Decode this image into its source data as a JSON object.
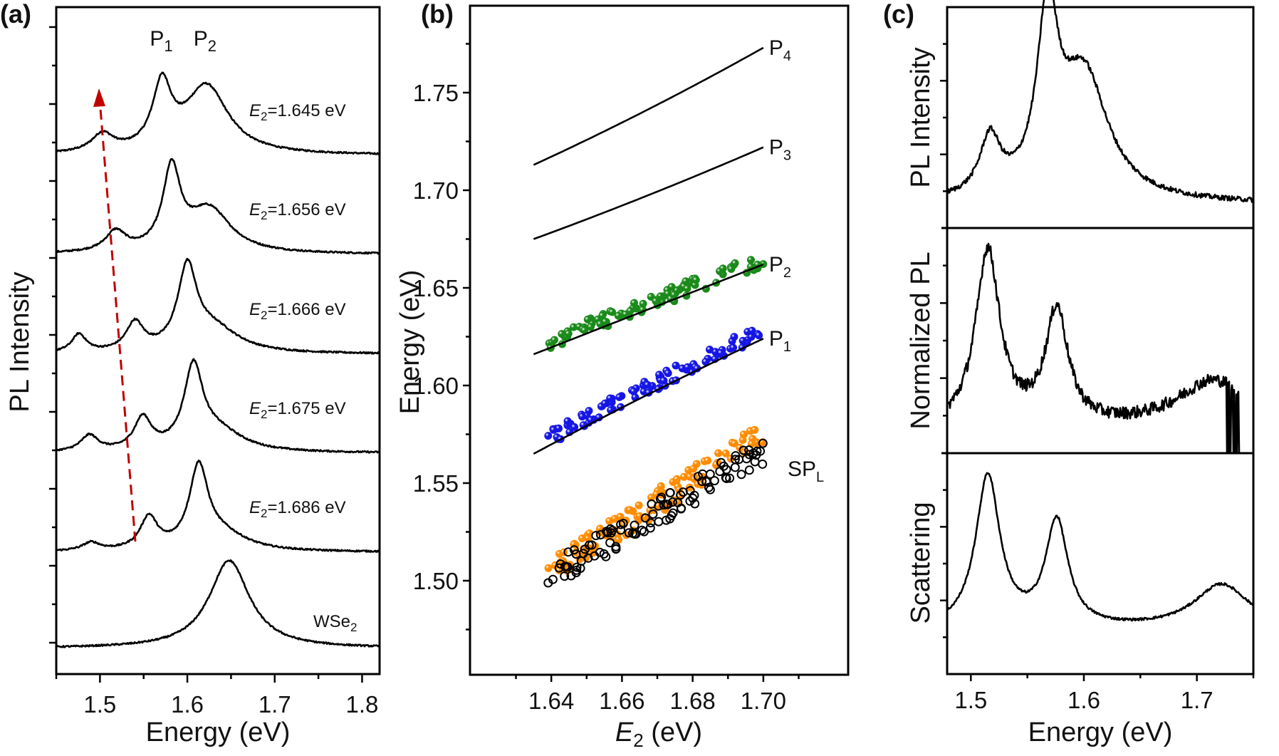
{
  "chart_data": [
    {
      "panel": "a",
      "type": "line",
      "panel_label": "(a)",
      "xlabel": "Energy (eV)",
      "ylabel": "PL Intensity",
      "xlim": [
        1.45,
        1.82
      ],
      "xticks": [
        "1.5",
        "1.6",
        "1.7",
        "1.8"
      ],
      "xtick_values": [
        1.5,
        1.6,
        1.7,
        1.8
      ],
      "peak_labels": [
        {
          "text": "P",
          "sub": "1",
          "x": 1.575
        },
        {
          "text": "P",
          "sub": "2",
          "x": 1.625
        }
      ],
      "series": [
        {
          "name": "E2=1.645 eV",
          "label_main": "E",
          "label_sub": "2",
          "label_rest": "=1.645 eV",
          "color": "#000000",
          "peaks": [
            [
              1.503,
              0.045,
              0.015
            ],
            [
              1.571,
              0.16,
              0.013
            ],
            [
              1.622,
              0.17,
              0.03
            ]
          ],
          "baseline": 0.0
        },
        {
          "name": "E2=1.656 eV",
          "label_main": "E",
          "label_sub": "2",
          "label_rest": "=1.656 eV",
          "color": "#000000",
          "peaks": [
            [
              1.518,
              0.05,
              0.014
            ],
            [
              1.582,
              0.2,
              0.012
            ],
            [
              1.625,
              0.11,
              0.03
            ]
          ],
          "baseline": 0.0
        },
        {
          "name": "E2=1.666 eV",
          "label_main": "E",
          "label_sub": "2",
          "label_rest": "=1.666 eV",
          "color": "#000000",
          "peaks": [
            [
              1.476,
              0.045,
              0.01
            ],
            [
              1.54,
              0.07,
              0.012
            ],
            [
              1.6,
              0.2,
              0.013
            ],
            [
              1.63,
              0.06,
              0.035
            ]
          ],
          "baseline": 0.0
        },
        {
          "name": "E2=1.675 eV",
          "label_main": "E",
          "label_sub": "2",
          "label_rest": "=1.675 eV",
          "color": "#000000",
          "peaks": [
            [
              1.488,
              0.04,
              0.012
            ],
            [
              1.549,
              0.08,
              0.012
            ],
            [
              1.607,
              0.2,
              0.013
            ],
            [
              1.635,
              0.05,
              0.035
            ]
          ],
          "baseline": 0.0
        },
        {
          "name": "E2=1.686 eV",
          "label_main": "E",
          "label_sub": "2",
          "label_rest": "=1.686 eV",
          "color": "#000000",
          "peaks": [
            [
              1.49,
              0.02,
              0.012
            ],
            [
              1.556,
              0.08,
              0.012
            ],
            [
              1.613,
              0.2,
              0.013
            ],
            [
              1.64,
              0.04,
              0.035
            ]
          ],
          "baseline": 0.0
        },
        {
          "name": "WSe2",
          "label_main": "WSe",
          "label_sub": "2",
          "label_rest": "",
          "color": "#ff0000",
          "peaks": [
            [
              1.648,
              0.22,
              0.028
            ]
          ],
          "baseline": 0.0
        }
      ],
      "arrow": {
        "from": [
          1.562,
          0.0
        ],
        "to": [
          1.5,
          1.0
        ],
        "style": "dashed",
        "color": "#c00000"
      }
    },
    {
      "panel": "b",
      "type": "scatter",
      "panel_label": "(b)",
      "xlabel_main": "E",
      "xlabel_sub": "2",
      "xlabel_rest": " (eV)",
      "ylabel": "Energy (eV)",
      "xlim": [
        1.617,
        1.724
      ],
      "ylim": [
        1.477,
        1.8
      ],
      "xticks": [
        "1.64",
        "1.66",
        "1.68",
        "1.70"
      ],
      "xtick_values": [
        1.64,
        1.66,
        1.68,
        1.7
      ],
      "yticks": [
        "1.50",
        "1.55",
        "1.60",
        "1.65",
        "1.70",
        "1.75"
      ],
      "ytick_values": [
        1.5,
        1.55,
        1.6,
        1.65,
        1.7,
        1.75
      ],
      "lines": [
        {
          "name": "P4",
          "label": "P",
          "sub": "4",
          "x": [
            1.635,
            1.7
          ],
          "y0": 1.713,
          "y1": 1.773,
          "curv": 0.006
        },
        {
          "name": "P3",
          "label": "P",
          "sub": "3",
          "x": [
            1.635,
            1.7
          ],
          "y0": 1.675,
          "y1": 1.722,
          "curv": 0.004
        },
        {
          "name": "P2",
          "label": "P",
          "sub": "2",
          "x": [
            1.635,
            1.7
          ],
          "y0": 1.616,
          "y1": 1.662,
          "curv": 0.0
        },
        {
          "name": "P1",
          "label": "P",
          "sub": "1",
          "x": [
            1.635,
            1.7
          ],
          "y0": 1.565,
          "y1": 1.624,
          "curv": -0.004
        }
      ],
      "scatter_series": [
        {
          "name": "P2 data",
          "color": "#1a8a1a",
          "filled": true,
          "fit": "P2",
          "offset": 0.003,
          "spread": 0.004,
          "n": 90
        },
        {
          "name": "P1 data",
          "color": "#1515e6",
          "filled": true,
          "fit": "P1",
          "offset": 0.004,
          "spread": 0.004,
          "n": 90
        },
        {
          "name": "SPL data (filled)",
          "color": "#ff8c00",
          "filled": true,
          "line": [
            1.505,
            1.572
          ],
          "spread": 0.007,
          "n": 110
        },
        {
          "name": "SPL data (open)",
          "color": "#000000",
          "filled": false,
          "line": [
            1.503,
            1.563
          ],
          "spread": 0.007,
          "n": 110
        }
      ],
      "spl_label": {
        "text": "SP",
        "sub": "L"
      }
    },
    {
      "panel": "c",
      "type": "line",
      "panel_label": "(c)",
      "xlabel": "Energy (eV)",
      "xlim": [
        1.479,
        1.75
      ],
      "xticks": [
        "1.5",
        "1.6",
        "1.7"
      ],
      "xtick_values": [
        1.5,
        1.6,
        1.7
      ],
      "subplots": [
        {
          "ylabel": "PL Intensity",
          "peaks": [
            [
              1.517,
              0.28,
              0.011
            ],
            [
              1.568,
              0.85,
              0.011
            ],
            [
              1.6,
              0.62,
              0.026
            ]
          ],
          "baseline": 0.1,
          "noise": 0.012
        },
        {
          "ylabel": "Normalized PL",
          "peaks": [
            [
              1.515,
              0.85,
              0.013
            ],
            [
              1.576,
              0.55,
              0.012
            ],
            [
              1.715,
              0.23,
              0.04
            ]
          ],
          "baseline": 0.1,
          "noise": 0.03,
          "cutoff": 1.725
        },
        {
          "ylabel": "Scattering",
          "peaks": [
            [
              1.515,
              0.75,
              0.013
            ],
            [
              1.576,
              0.52,
              0.012
            ],
            [
              1.722,
              0.22,
              0.03
            ]
          ],
          "baseline": 0.2,
          "noise": 0.006
        }
      ]
    }
  ]
}
